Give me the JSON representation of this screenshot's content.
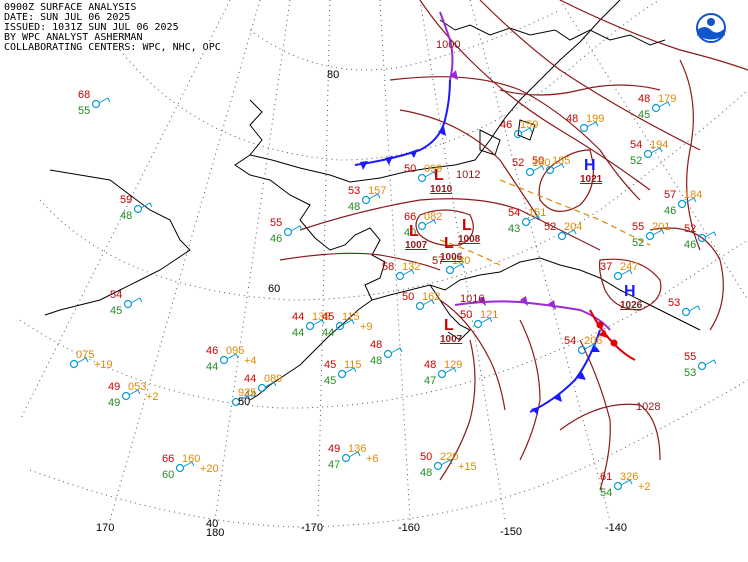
{
  "header": {
    "line1": "0900Z SURFACE ANALYSIS",
    "line2": "DATE: SUN JUL 06 2025",
    "line3": "ISSUED: 1031Z SUN JUL 06 2025",
    "line4": "BY WPC ANALYST ASHERMAN",
    "line5": "COLLABORATING CENTERS: WPC, NHC, OPC"
  },
  "logo": {
    "name": "noaa-logo",
    "color": "#1155cc"
  },
  "colors": {
    "isobar": "#8b1a1a",
    "cold_front": "#1a1aff",
    "occluded_front": "#9a2ad6",
    "warm_front": "#e00000",
    "trough": "#e08a00",
    "temp": "#cc0000",
    "dewpoint": "#228b22",
    "pressure": "#e08a00",
    "station": "#0a9ad6",
    "high_low": "#cc0000"
  },
  "grid_labels": {
    "lat": [
      "80",
      "60",
      "50",
      "40"
    ],
    "lon": [
      "170",
      "180",
      "-170",
      "-160",
      "-150",
      "-140"
    ]
  },
  "centers": [
    {
      "type": "L",
      "pressure": "1010"
    },
    {
      "type": "L",
      "pressure": "1007"
    },
    {
      "type": "L",
      "pressure": "1006"
    },
    {
      "type": "L",
      "pressure": "1008"
    },
    {
      "type": "L",
      "pressure": "1007"
    },
    {
      "type": "H",
      "pressure": "1021"
    },
    {
      "type": "H",
      "pressure": "1026"
    }
  ],
  "isobar_labels": [
    "1000",
    "1012",
    "1016",
    "1028"
  ],
  "stations": [
    {
      "temp": "68",
      "dew": "55"
    },
    {
      "temp": "59",
      "dew": "48"
    },
    {
      "temp": "55",
      "dew": "46"
    },
    {
      "temp": "54",
      "dew": "45"
    },
    {
      "temp": "",
      "dew": "",
      "pressure": "075",
      "tendency": "+19"
    },
    {
      "temp": "49",
      "dew": "49",
      "pressure": "053",
      "tendency": "+2"
    },
    {
      "temp": "46",
      "dew": "44",
      "pressure": "095",
      "tendency": "+4"
    },
    {
      "temp": "44",
      "dew": "44",
      "pressure": "089"
    },
    {
      "temp": "",
      "dew": "",
      "pressure": "925"
    },
    {
      "temp": "44",
      "dew": "44",
      "pressure": "135"
    },
    {
      "temp": "45",
      "dew": "44",
      "pressure": "115",
      "tendency": "+9"
    },
    {
      "temp": "45",
      "dew": "45",
      "pressure": "115"
    },
    {
      "temp": "48",
      "dew": "47",
      "pressure": "129"
    },
    {
      "temp": "48",
      "dew": "48"
    },
    {
      "temp": "53",
      "dew": "48",
      "pressure": "157"
    },
    {
      "temp": "66",
      "dew": "40",
      "pressure": "082"
    },
    {
      "temp": "58",
      "dew": "",
      "pressure": "132"
    },
    {
      "temp": "50",
      "dew": "",
      "pressure": "162"
    },
    {
      "temp": "57",
      "dew": "",
      "pressure": "130"
    },
    {
      "temp": "54",
      "dew": "43",
      "pressure": "151"
    },
    {
      "temp": "52",
      "dew": "",
      "pressure": "204"
    },
    {
      "temp": "50",
      "dew": "",
      "pressure": "185"
    },
    {
      "temp": "54",
      "dew": "52",
      "pressure": "194"
    },
    {
      "temp": "55",
      "dew": "52",
      "pressure": "201"
    },
    {
      "temp": "57",
      "dew": "46",
      "pressure": "184"
    },
    {
      "temp": "48",
      "dew": "45",
      "pressure": "179"
    },
    {
      "temp": "48",
      "dew": "",
      "pressure": "199"
    },
    {
      "temp": "37",
      "dew": "",
      "pressure": "247"
    },
    {
      "temp": "49",
      "dew": "47",
      "pressure": "136",
      "tendency": "+6"
    },
    {
      "temp": "50",
      "dew": "48",
      "pressure": "220",
      "tendency": "+15"
    },
    {
      "temp": "66",
      "dew": "60",
      "pressure": "160",
      "tendency": "+20"
    },
    {
      "temp": "61",
      "dew": "54",
      "pressure": "326",
      "tendency": "+2"
    },
    {
      "temp": "54",
      "dew": "",
      "pressure": "206"
    },
    {
      "temp": "55",
      "dew": "53"
    },
    {
      "temp": "50",
      "dew": "",
      "pressure": "121"
    },
    {
      "temp": "52",
      "dew": "",
      "pressure": "160"
    },
    {
      "temp": "50",
      "dew": "",
      "pressure": "099"
    },
    {
      "temp": "46",
      "dew": "",
      "pressure": "159"
    },
    {
      "temp": "53",
      "dew": ""
    },
    {
      "temp": "52",
      "dew": "46"
    }
  ]
}
